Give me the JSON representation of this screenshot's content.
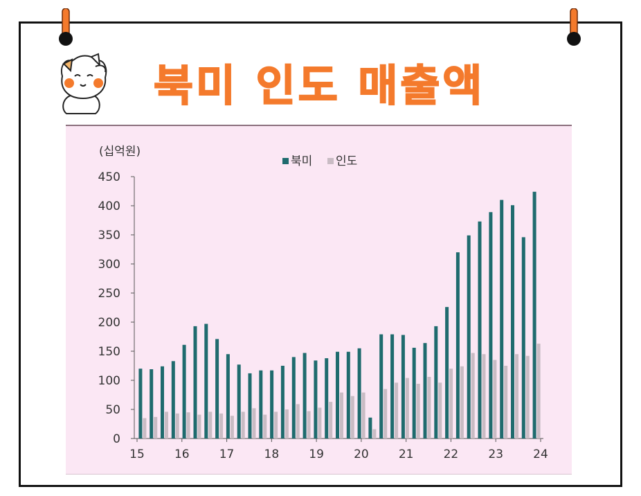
{
  "title": "북미 인도 매출액",
  "colors": {
    "accent": "#f47a2c",
    "panel_bg": "#fbe7f4",
    "north_america": "#1f6b6e",
    "india": "#c9bcc4"
  },
  "chart_data": {
    "type": "bar",
    "unit_label": "(십억원)",
    "ylim": [
      0,
      450
    ],
    "yticks": [
      0,
      50,
      100,
      150,
      200,
      250,
      300,
      350,
      400,
      450
    ],
    "xtick_labels": [
      "15",
      "16",
      "17",
      "18",
      "19",
      "20",
      "21",
      "22",
      "23",
      "24"
    ],
    "legend_position": "top-center",
    "grid": false,
    "series": [
      {
        "name": "북미",
        "color": "#1f6b6e",
        "values": [
          120,
          119,
          124,
          133,
          161,
          193,
          197,
          171,
          145,
          127,
          112,
          117,
          117,
          125,
          140,
          147,
          134,
          138,
          149,
          149,
          155,
          36,
          179,
          179,
          178,
          156,
          164,
          193,
          226,
          320,
          349,
          373,
          389,
          410,
          401,
          346,
          424
        ]
      },
      {
        "name": "인도",
        "color": "#c9bcc4",
        "values": [
          35,
          37,
          46,
          43,
          45,
          41,
          46,
          43,
          39,
          46,
          52,
          41,
          46,
          50,
          59,
          47,
          53,
          63,
          79,
          73,
          79,
          16,
          85,
          96,
          104,
          94,
          106,
          96,
          120,
          124,
          147,
          145,
          135,
          125,
          145,
          142,
          163
        ]
      }
    ]
  }
}
